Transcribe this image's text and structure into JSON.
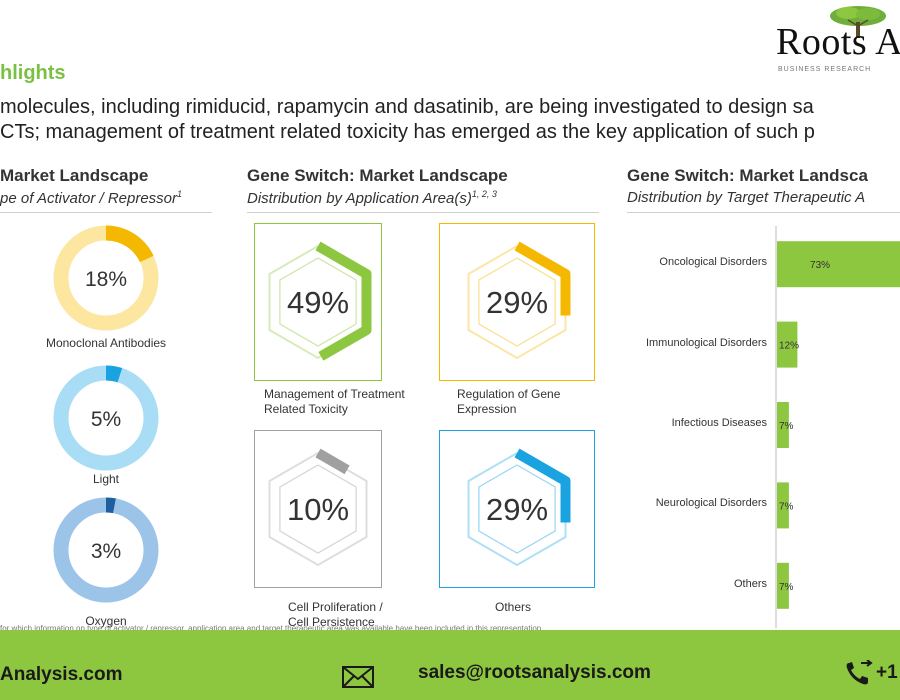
{
  "header": {
    "logo_text": "Roots A",
    "logo_tag": "BUSINESS RESEARCH",
    "highlights_label": "hlights",
    "intro_line1": "molecules, including rimiducid, rapamycin and dasatinib, are being investigated to design sa",
    "intro_line2": "CTs; management of treatment related toxicity has emerged as the key application of such p"
  },
  "colors": {
    "green": "#8dc63f",
    "yellow": "#f5b800",
    "light_yellow": "#fde7a0",
    "light_blue": "#a8ddf5",
    "cyan": "#1aa3e0",
    "steel_blue": "#9cc4e8",
    "dark_blue": "#1f5f9e",
    "grey": "#a0a0a0"
  },
  "left_panel": {
    "title": "Market Landscape",
    "subtitle": "pe of Activator / Repressor",
    "subtitle_sup": "1"
  },
  "middle_panel": {
    "title": "Gene Switch: Market Landscape",
    "subtitle": "Distribution by Application Area(s)",
    "subtitle_sup": "1, 2, 3"
  },
  "right_panel": {
    "title": "Gene Switch: Market Landsca",
    "subtitle": "Distribution by Target Therapeutic A"
  },
  "footnote": "for which information on type of activator / repressor, application area and target therapeutic area was available have been included in this representation.",
  "footer": {
    "website": "Analysis.com",
    "email": "sales@rootsanalysis.com",
    "phone": "+1"
  },
  "chart_data": [
    {
      "type": "pie",
      "subtitle": "pe of Activator / Repressor",
      "slices": [
        {
          "label": "Monoclonal Antibodies",
          "value": 18,
          "display": "18%",
          "color": "#f5b800",
          "track": "#fde7a0"
        },
        {
          "label": "Light",
          "value": 5,
          "display": "5%",
          "color": "#1aa3e0",
          "track": "#a8ddf5"
        },
        {
          "label": "Oxygen",
          "value": 3,
          "display": "3%",
          "color": "#1f5f9e",
          "track": "#9cc4e8"
        }
      ]
    },
    {
      "type": "pie",
      "title": "Gene Switch: Market Landscape",
      "subtitle": "Distribution by Application Area(s)",
      "slices": [
        {
          "label": "Management of Treatment Related Toxicity",
          "lines": [
            "Management of Treatment",
            "Related Toxicity"
          ],
          "value": 49,
          "display": "49%",
          "color": "#8dc63f"
        },
        {
          "label": "Regulation of Gene Expression",
          "lines": [
            "Regulation of Gene",
            "Expression"
          ],
          "value": 29,
          "display": "29%",
          "color": "#f5b800"
        },
        {
          "label": "Cell Proliferation / Cell Persistence",
          "lines": [
            "Cell Proliferation /",
            "Cell Persistence"
          ],
          "value": 10,
          "display": "10%",
          "color": "#a0a0a0"
        },
        {
          "label": "Others",
          "lines": [
            "Others"
          ],
          "value": 29,
          "display": "29%",
          "color": "#1aa3e0"
        }
      ]
    },
    {
      "type": "bar",
      "orientation": "horizontal",
      "title": "Gene Switch: Market Landsca",
      "subtitle": "Distribution by Target Therapeutic A",
      "categories": [
        "Oncological Disorders",
        "Immunological Disorders",
        "Infectious Diseases",
        "Neurological Disorders",
        "Others"
      ],
      "values": [
        73,
        12,
        7,
        7,
        7
      ],
      "labels": [
        "73%",
        "12%",
        "7%",
        "7%",
        "7%"
      ],
      "color": "#8dc63f",
      "xlim": [
        0,
        100
      ]
    }
  ]
}
